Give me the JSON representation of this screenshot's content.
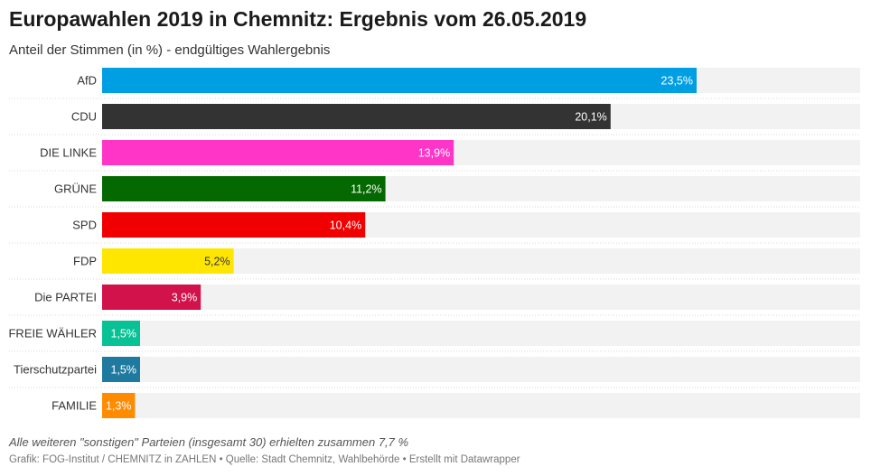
{
  "chart_data": {
    "type": "bar",
    "orientation": "horizontal",
    "title": "Europawahlen 2019 in Chemnitz: Ergebnis vom 26.05.2019",
    "subtitle": "Anteil der Stimmen (in %) - endgültiges Wahlergebnis",
    "categories": [
      "AfD",
      "CDU",
      "DIE LINKE",
      "GRÜNE",
      "SPD",
      "FDP",
      "Die PARTEI",
      "FREIE WÄHLER",
      "Tierschutzpartei",
      "FAMILIE"
    ],
    "values": [
      23.5,
      20.1,
      13.9,
      11.2,
      10.4,
      5.2,
      3.9,
      1.5,
      1.5,
      1.3
    ],
    "value_labels": [
      "23,5%",
      "20,1%",
      "13,9%",
      "11,2%",
      "10,4%",
      "5,2%",
      "3,9%",
      "1,5%",
      "1,5%",
      "1,3%"
    ],
    "colors": [
      "#009fe3",
      "#333333",
      "#ff35c8",
      "#036900",
      "#f00000",
      "#ffe600",
      "#d1124b",
      "#08c295",
      "#1f7aa0",
      "#ff8c00"
    ],
    "label_colors": [
      "#ffffff",
      "#ffffff",
      "#ffffff",
      "#ffffff",
      "#ffffff",
      "#333333",
      "#ffffff",
      "#ffffff",
      "#ffffff",
      "#ffffff"
    ],
    "track_color": "#f2f2f2",
    "xlim": [
      0,
      30
    ],
    "grid": false,
    "legend": "none"
  },
  "note": "Alle weiteren \"sonstigen\" Parteien (insgesamt 30) erhielten zusammen 7,7 %",
  "footer": "Grafik: FOG-Institut / CHEMNITZ in ZAHLEN • Quelle: Stadt Chemnitz, Wahlbehörde • Erstellt mit Datawrapper"
}
